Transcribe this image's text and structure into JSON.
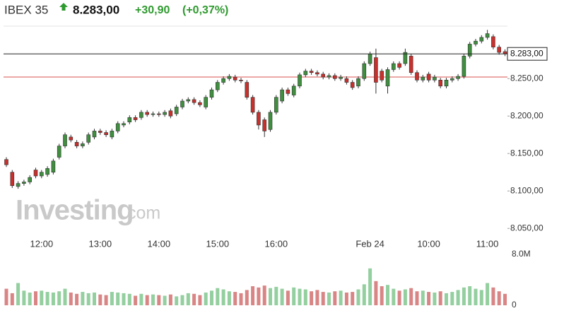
{
  "header": {
    "name": "IBEX 35",
    "price": "8.283,00",
    "change": "+30,90",
    "change_pct": "(+0,37%)"
  },
  "watermark": {
    "brand": "Investing",
    "suffix": ".com"
  },
  "chart_data": [
    {
      "type": "candlestick",
      "categories": [
        null,
        null,
        null,
        null,
        null,
        null,
        "12:00",
        null,
        null,
        null,
        null,
        null,
        null,
        null,
        null,
        null,
        "13:00",
        null,
        null,
        null,
        null,
        null,
        null,
        null,
        null,
        null,
        "14:00",
        null,
        null,
        null,
        null,
        null,
        null,
        null,
        null,
        null,
        "15:00",
        null,
        null,
        null,
        null,
        null,
        null,
        null,
        null,
        null,
        "16:00",
        null,
        null,
        null,
        null,
        null,
        null,
        null,
        null,
        null,
        null,
        null,
        null,
        null,
        null,
        null,
        "Feb 24",
        null,
        null,
        null,
        null,
        null,
        null,
        null,
        null,
        null,
        "10:00",
        null,
        null,
        null,
        null,
        null,
        null,
        null,
        null,
        null,
        "11:00",
        null,
        null,
        null
      ],
      "open": [
        8142,
        8125,
        8106,
        8110,
        8112,
        8128,
        8120,
        8122,
        8125,
        8145,
        8160,
        8172,
        8165,
        8160,
        8165,
        8172,
        8180,
        8178,
        8172,
        8180,
        8188,
        8192,
        8198,
        8198,
        8205,
        8202,
        8203,
        8202,
        8207,
        8203,
        8212,
        8220,
        8222,
        8218,
        8212,
        8225,
        8235,
        8245,
        8250,
        8252,
        8248,
        8245,
        8225,
        8205,
        8195,
        8182,
        8205,
        8220,
        8235,
        8228,
        8240,
        8255,
        8260,
        8258,
        8256,
        8252,
        8254,
        8250,
        8250,
        8245,
        8240,
        8250,
        8270,
        8278,
        8260,
        8240,
        8262,
        8270,
        8270,
        8280,
        8258,
        8248,
        8256,
        8248,
        8248,
        8240,
        8248,
        8250,
        8253,
        8280,
        8296,
        8300,
        8305,
        8306,
        8292,
        8286
      ],
      "high": [
        8145,
        8128,
        8113,
        8115,
        8121,
        8131,
        8128,
        8133,
        8143,
        8163,
        8178,
        8175,
        8168,
        8166,
        8178,
        8183,
        8183,
        8181,
        8183,
        8193,
        8193,
        8201,
        8201,
        8208,
        8208,
        8206,
        8206,
        8208,
        8210,
        8215,
        8223,
        8225,
        8225,
        8221,
        8228,
        8238,
        8248,
        8253,
        8256,
        8255,
        8251,
        8248,
        8228,
        8208,
        8198,
        8208,
        8228,
        8238,
        8238,
        8243,
        8258,
        8263,
        8263,
        8261,
        8259,
        8257,
        8257,
        8255,
        8253,
        8248,
        8253,
        8273,
        8286,
        8290,
        8263,
        8265,
        8273,
        8273,
        8290,
        8283,
        8261,
        8255,
        8259,
        8255,
        8251,
        8251,
        8253,
        8256,
        8283,
        8299,
        8303,
        8308,
        8315,
        8309,
        8295,
        8289
      ],
      "low": [
        8132,
        8104,
        8103,
        8107,
        8109,
        8117,
        8117,
        8119,
        8122,
        8142,
        8157,
        8165,
        8157,
        8157,
        8162,
        8169,
        8175,
        8172,
        8169,
        8177,
        8185,
        8189,
        8192,
        8195,
        8199,
        8199,
        8199,
        8199,
        8197,
        8200,
        8209,
        8217,
        8215,
        8212,
        8209,
        8222,
        8232,
        8242,
        8247,
        8245,
        8244,
        8222,
        8202,
        8182,
        8172,
        8179,
        8202,
        8217,
        8227,
        8225,
        8237,
        8252,
        8255,
        8253,
        8249,
        8249,
        8247,
        8247,
        8242,
        8235,
        8237,
        8247,
        8267,
        8230,
        8245,
        8230,
        8259,
        8262,
        8267,
        8255,
        8245,
        8245,
        8245,
        8245,
        8237,
        8237,
        8245,
        8247,
        8250,
        8277,
        8293,
        8297,
        8302,
        8289,
        8282,
        8280
      ],
      "close": [
        8135,
        8107,
        8110,
        8112,
        8118,
        8120,
        8125,
        8130,
        8140,
        8160,
        8175,
        8168,
        8160,
        8163,
        8175,
        8180,
        8178,
        8175,
        8180,
        8190,
        8190,
        8198,
        8195,
        8205,
        8202,
        8203,
        8202,
        8205,
        8200,
        8212,
        8220,
        8222,
        8218,
        8215,
        8225,
        8235,
        8245,
        8250,
        8253,
        8248,
        8247,
        8225,
        8205,
        8188,
        8180,
        8205,
        8225,
        8235,
        8230,
        8240,
        8255,
        8260,
        8258,
        8256,
        8252,
        8254,
        8250,
        8252,
        8245,
        8238,
        8250,
        8270,
        8283,
        8245,
        8248,
        8262,
        8270,
        8265,
        8285,
        8258,
        8248,
        8252,
        8248,
        8252,
        8240,
        8248,
        8250,
        8253,
        8280,
        8296,
        8300,
        8305,
        8310,
        8292,
        8285,
        8283
      ],
      "up_color": "#3f8f3f",
      "down_color": "#c9302c",
      "ylim": [
        8037,
        8320
      ],
      "yticks": [
        {
          "value": 8050,
          "label": "8.050,00"
        },
        {
          "value": 8100,
          "label": "8.100,00"
        },
        {
          "value": 8150,
          "label": "8.150,00"
        },
        {
          "value": 8200,
          "label": "8.200,00"
        },
        {
          "value": 8250,
          "label": "8.250,00"
        }
      ],
      "last_price": {
        "value": 8283,
        "label": "8.283,00"
      },
      "reference_line": 8252.1,
      "reference_color": "#d9534f"
    },
    {
      "type": "bar",
      "values": [
        2600000,
        1900000,
        3500000,
        2300000,
        2000000,
        2200000,
        2300000,
        2100000,
        2000000,
        2200000,
        2600000,
        2000000,
        1800000,
        2100000,
        1900000,
        2000000,
        1700000,
        1600000,
        2100000,
        2000000,
        1900000,
        1800000,
        1500000,
        1800000,
        1600000,
        1700000,
        1600000,
        1500000,
        1700000,
        1400000,
        1600000,
        1900000,
        1800000,
        1600000,
        2000000,
        2300000,
        2700000,
        2500000,
        2200000,
        2100000,
        1900000,
        2400000,
        3000000,
        2800000,
        3100000,
        2700000,
        2900000,
        2600000,
        2300000,
        2800000,
        2600000,
        2500000,
        2200000,
        2400000,
        2100000,
        2000000,
        2200000,
        2300000,
        2000000,
        2100000,
        2500000,
        3300000,
        5800000,
        3800000,
        3000000,
        3200000,
        2600000,
        2300000,
        2500000,
        2700000,
        2200000,
        2300000,
        2100000,
        2000000,
        2200000,
        1900000,
        2100000,
        2400000,
        2800000,
        3000000,
        2600000,
        2400000,
        3500000,
        2800000,
        2200000,
        1800000
      ],
      "up_color": "#94cf9f",
      "down_color": "#d98585",
      "ylim": [
        0,
        8000000
      ],
      "yticks": [
        0,
        {
          "value": 8000000,
          "label": "8.0M"
        }
      ]
    }
  ]
}
